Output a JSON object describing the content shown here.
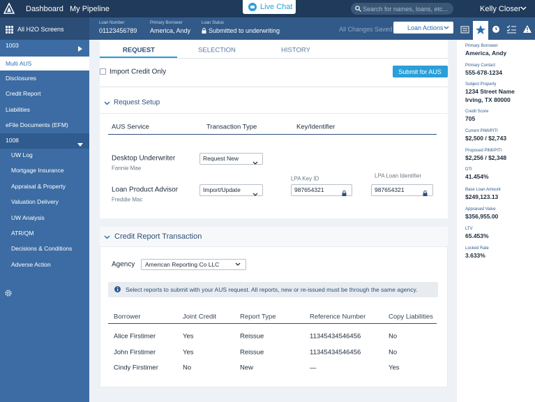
{
  "header": {
    "nav": [
      "Dashboard",
      "My Pipeline"
    ],
    "live_chat": "Live Chat",
    "search_placeholder": "Search for names, loans, etc...",
    "user": "Kelly Closer"
  },
  "loan_bar": {
    "screens_label": "All H2O Screens",
    "fields": [
      {
        "label": "Loan Number",
        "value": "01123456789"
      },
      {
        "label": "Primary Borrower",
        "value": "America, Andy"
      },
      {
        "label": "Loan Status",
        "value": "Submitted to underwriting"
      }
    ],
    "save_status": "All Changes Saved",
    "actions": "Loan Actions"
  },
  "sidebar": {
    "items": [
      "1003",
      "Multi AUS",
      "Disclosures",
      "Credit Report",
      "Liabilities",
      "eFile Documents (EFM)",
      "1008"
    ],
    "sub_items": [
      "UW Log",
      "Mortgage Insurance",
      "Appraisal & Property",
      "Valuation Delivery",
      "UW Analysis",
      "ATR/QM",
      "Decisions & Conditions",
      "Adverse Action"
    ]
  },
  "tabs": [
    "REQUEST",
    "SELECTION",
    "HISTORY"
  ],
  "request": {
    "import_credit_only": "Import Credit Only",
    "submit": "Submit for AUS"
  },
  "request_setup": {
    "title": "Request Setup",
    "columns": [
      "AUS Service",
      "Transaction Type",
      "Key/Identifier"
    ],
    "rows": [
      {
        "service": "Desktop Underwriter",
        "provider": "Fannie Mae",
        "transaction": "Request New"
      },
      {
        "service": "Loan Product Advisor",
        "provider": "Freddie Mac",
        "transaction": "Import/Update",
        "key_label": "LPA Key ID",
        "key": "987654321",
        "loan_id_label": "LPA Loan Identifier",
        "loan_id": "987654321"
      }
    ]
  },
  "credit_report": {
    "title": "Credit Report Transaction",
    "agency_label": "Agency",
    "agency": "American Reporting Co LLC",
    "notice": "Select reports to submit with your AUS request. All reports, new or re-issued must be through the same agency.",
    "columns": [
      "Borrower",
      "Joint Credit",
      "Report Type",
      "Reference Number",
      "Copy Liabilities"
    ],
    "rows": [
      [
        "Alice Firstimer",
        "Yes",
        "Reissue",
        "11345434546456",
        "No"
      ],
      [
        "John Firstimer",
        "Yes",
        "Reissue",
        "11345434546456",
        "No"
      ],
      [
        "Cindy Firstimer",
        "No",
        "New",
        "—",
        "Yes"
      ]
    ]
  },
  "summary": [
    {
      "label": "Primary Borrower",
      "value": [
        "America, Andy"
      ]
    },
    {
      "label": "Primary Contact",
      "value": [
        "555-678-1234"
      ]
    },
    {
      "label": "Subject Property",
      "value": [
        "1234 Street Name",
        "Irving, TX 80000"
      ]
    },
    {
      "label": "Credit Score",
      "value": [
        "705"
      ]
    },
    {
      "label": "Current PIMI/PITI",
      "value": [
        "$2,500 / $2,743"
      ]
    },
    {
      "label": "Proposed PIMI/PITI",
      "value": [
        "$2,256 / $2,348"
      ]
    },
    {
      "label": "DTI",
      "value": [
        "41.454%"
      ]
    },
    {
      "label": "Base Loan Amount",
      "value": [
        "$249,123.13"
      ]
    },
    {
      "label": "Appraised Value",
      "value": [
        "$356,955.00"
      ]
    },
    {
      "label": "LTV",
      "value": [
        "65.453%"
      ]
    },
    {
      "label": "Locked Rate",
      "value": [
        "3.633%"
      ]
    }
  ]
}
